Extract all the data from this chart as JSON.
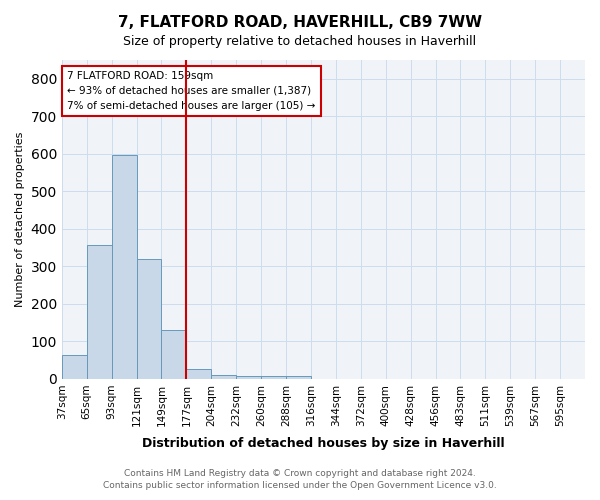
{
  "title": "7, FLATFORD ROAD, HAVERHILL, CB9 7WW",
  "subtitle": "Size of property relative to detached houses in Haverhill",
  "xlabel": "Distribution of detached houses by size in Haverhill",
  "ylabel": "Number of detached properties",
  "footer_line1": "Contains HM Land Registry data © Crown copyright and database right 2024.",
  "footer_line2": "Contains public sector information licensed under the Open Government Licence v3.0.",
  "bin_labels": [
    "37sqm",
    "65sqm",
    "93sqm",
    "121sqm",
    "149sqm",
    "177sqm",
    "204sqm",
    "232sqm",
    "260sqm",
    "288sqm",
    "316sqm",
    "344sqm",
    "372sqm",
    "400sqm",
    "428sqm",
    "456sqm",
    "483sqm",
    "511sqm",
    "539sqm",
    "567sqm",
    "595sqm"
  ],
  "bar_values": [
    65,
    358,
    598,
    319,
    130,
    27,
    10,
    7,
    7,
    7,
    0,
    0,
    0,
    0,
    0,
    0,
    0,
    0,
    0,
    0
  ],
  "bar_color": "#c8d8e8",
  "bar_edge_color": "#6699bb",
  "vline_x": 4.5,
  "vline_color": "#cc0000",
  "annotation_text": "7 FLATFORD ROAD: 159sqm\n← 93% of detached houses are smaller (1,387)\n7% of semi-detached houses are larger (105) →",
  "annotation_box_color": "#ffffff",
  "annotation_box_edge": "#cc0000",
  "ylim": [
    0,
    850
  ],
  "yticks": [
    0,
    100,
    200,
    300,
    400,
    500,
    600,
    700,
    800
  ],
  "grid_color": "#ccddee",
  "background_color": "#f0f4f8"
}
